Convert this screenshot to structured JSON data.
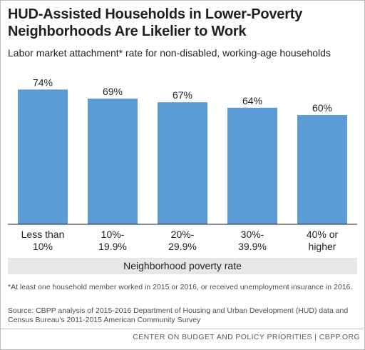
{
  "title_line1": "HUD-Assisted Households in Lower-Poverty",
  "title_line2": "Neighborhoods Are Likelier to Work",
  "subtitle": "Labor market attachment* rate for non-disabled, working-age households",
  "axis_title": "Neighborhood poverty rate",
  "footnote": "*At least one household member worked in 2015 or 2016, or received unemployment insurance in 2016.",
  "source": "Source: CBPP analysis of 2015-2016 Department of Housing and Urban Development (HUD) data and Census Bureau's 2011-2015 American Community Survey",
  "footer": "CENTER ON BUDGET AND POLICY PRIORITIES | CBPP.ORG",
  "colors": {
    "bar": "#5b9bd5",
    "axis": "#231f20",
    "band": "#e6e7e8"
  },
  "chart_data": {
    "type": "bar",
    "categories": [
      [
        "Less than",
        "10%"
      ],
      [
        "10%-",
        "19.9%"
      ],
      [
        "20%-",
        "29.9%"
      ],
      [
        "30%-",
        "39.9%"
      ],
      [
        "40% or",
        "higher"
      ]
    ],
    "values": [
      74,
      69,
      67,
      64,
      60
    ],
    "value_labels": [
      "74%",
      "69%",
      "67%",
      "64%",
      "60%"
    ],
    "xlabel": "Neighborhood poverty rate",
    "ylabel": "",
    "ylim": [
      0,
      80
    ],
    "grid": false,
    "legend": "none"
  }
}
